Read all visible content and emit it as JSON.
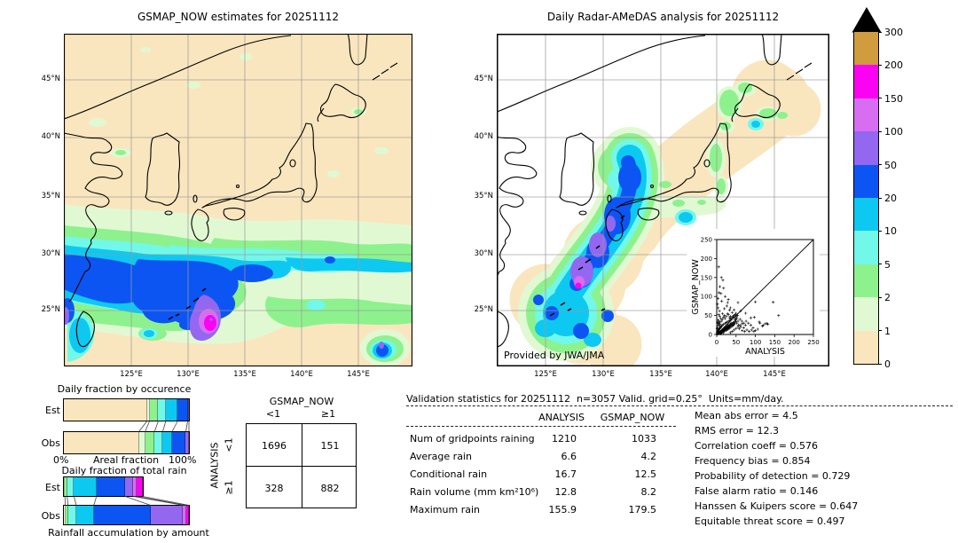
{
  "palette": {
    "tan": "#FAE6BE",
    "palegreen": "#E1F9D3",
    "green": "#8DF28D",
    "aqua": "#72F8E8",
    "cyan": "#0DC9F2",
    "blue": "#0C55F2",
    "purple": "#9467F0",
    "orchid": "#D96DF2",
    "magenta": "#FB02F2",
    "gold": "#D09C3E",
    "grid": "#9a9a9a",
    "coast": "#000000"
  },
  "left_map": {
    "title": "GSMAP_NOW estimates for 20251112",
    "lat_labels": [
      "45°N",
      "40°N",
      "35°N",
      "30°N",
      "25°N"
    ],
    "lon_labels": [
      "125°E",
      "130°E",
      "135°E",
      "140°E",
      "145°E"
    ]
  },
  "right_map": {
    "title": "Daily Radar-AMeDAS analysis for 20251112",
    "lat_labels": [
      "45°N",
      "40°N",
      "35°N",
      "30°N",
      "25°N"
    ],
    "lon_labels": [
      "125°E",
      "130°E",
      "135°E",
      "140°E",
      "145°E"
    ],
    "credit": "Provided by JWA/JMA"
  },
  "colorbar": {
    "labels_top_to_bottom": [
      "300",
      "200",
      "150",
      "100",
      "50",
      "20",
      "10",
      "5",
      "2",
      "1",
      "0"
    ],
    "colors_top_to_bottom": [
      "gold",
      "magenta",
      "orchid",
      "purple",
      "blue",
      "cyan",
      "aqua",
      "green",
      "palegreen",
      "tan"
    ],
    "overflow_marker": "black-triangle"
  },
  "chart_data": [
    {
      "type": "bar",
      "orientation": "horizontal-stacked",
      "title": "Daily fraction by occurence",
      "rows": [
        "Est",
        "Obs"
      ],
      "xlabel": "Areal fraction",
      "x_min_label": "0%",
      "x_max_label": "100%",
      "bins_mm_per_day": [
        "0-1",
        "1-2",
        "2-5",
        "5-10",
        "10-20",
        "20-50",
        "50-100",
        "100-150",
        "150-200",
        "200-300"
      ],
      "series": [
        {
          "name": "Est",
          "values": [
            66.5,
            2.0,
            7.0,
            6.0,
            9.5,
            8.0,
            1.0,
            0,
            0,
            0
          ]
        },
        {
          "name": "Obs",
          "values": [
            60.0,
            5.0,
            7.5,
            6.5,
            7.5,
            11.0,
            2.5,
            0,
            0,
            0
          ]
        }
      ]
    },
    {
      "type": "bar",
      "orientation": "horizontal-stacked",
      "title": "Daily fraction of total rain",
      "caption": "Rainfall accumulation by amount",
      "rows": [
        "Est",
        "Obs"
      ],
      "bins_mm_per_day": [
        "0-1",
        "1-2",
        "2-5",
        "5-10",
        "10-20",
        "20-50",
        "50-100",
        "100-150",
        "150-200",
        "200-300"
      ],
      "series": [
        {
          "name": "Est",
          "values": [
            0,
            0.8,
            1.8,
            5.5,
            18.0,
            23.0,
            6.5,
            2.8,
            4.6,
            0
          ]
        },
        {
          "name": "Obs",
          "values": [
            0,
            1.2,
            2.2,
            6.5,
            14.0,
            45.5,
            26.0,
            2.4,
            2.2,
            0
          ]
        }
      ]
    },
    {
      "type": "scatter",
      "xlabel": "ANALYSIS",
      "ylabel": "GSMAP_NOW",
      "xlim": [
        0,
        250
      ],
      "ylim": [
        0,
        250
      ],
      "ticks": [
        0,
        50,
        100,
        150,
        200,
        250
      ],
      "diagonal": true,
      "points": [
        [
          1,
          2
        ],
        [
          2,
          1
        ],
        [
          3,
          4
        ],
        [
          1,
          6
        ],
        [
          5,
          2
        ],
        [
          4,
          7
        ],
        [
          2,
          9
        ],
        [
          6,
          5
        ],
        [
          8,
          3
        ],
        [
          7,
          8
        ],
        [
          3,
          11
        ],
        [
          9,
          6
        ],
        [
          10,
          2
        ],
        [
          5,
          12
        ],
        [
          11,
          8
        ],
        [
          12,
          4
        ],
        [
          6,
          14
        ],
        [
          13,
          10
        ],
        [
          8,
          16
        ],
        [
          14,
          6
        ],
        [
          15,
          12
        ],
        [
          9,
          18
        ],
        [
          16,
          8
        ],
        [
          10,
          3
        ],
        [
          17,
          14
        ],
        [
          11,
          20
        ],
        [
          18,
          10
        ],
        [
          12,
          7
        ],
        [
          19,
          16
        ],
        [
          13,
          22
        ],
        [
          20,
          12
        ],
        [
          14,
          9
        ],
        [
          21,
          18
        ],
        [
          15,
          25
        ],
        [
          22,
          14
        ],
        [
          16,
          11
        ],
        [
          23,
          20
        ],
        [
          17,
          5
        ],
        [
          24,
          16
        ],
        [
          18,
          27
        ],
        [
          25,
          12
        ],
        [
          19,
          13
        ],
        [
          26,
          22
        ],
        [
          20,
          8
        ],
        [
          27,
          18
        ],
        [
          21,
          29
        ],
        [
          28,
          14
        ],
        [
          22,
          15
        ],
        [
          29,
          24
        ],
        [
          23,
          10
        ],
        [
          30,
          20
        ],
        [
          24,
          31
        ],
        [
          31,
          16
        ],
        [
          25,
          17
        ],
        [
          32,
          26
        ],
        [
          26,
          12
        ],
        [
          33,
          22
        ],
        [
          27,
          33
        ],
        [
          34,
          18
        ],
        [
          28,
          19
        ],
        [
          35,
          28
        ],
        [
          29,
          14
        ],
        [
          36,
          24
        ],
        [
          30,
          35
        ],
        [
          37,
          20
        ],
        [
          31,
          21
        ],
        [
          38,
          30
        ],
        [
          32,
          16
        ],
        [
          39,
          26
        ],
        [
          33,
          37
        ],
        [
          40,
          22
        ],
        [
          34,
          23
        ],
        [
          2,
          18
        ],
        [
          3,
          25
        ],
        [
          4,
          30
        ],
        [
          5,
          35
        ],
        [
          6,
          28
        ],
        [
          7,
          22
        ],
        [
          8,
          33
        ],
        [
          9,
          27
        ],
        [
          1,
          15
        ],
        [
          2,
          32
        ],
        [
          3,
          38
        ],
        [
          41,
          28
        ],
        [
          42,
          24
        ],
        [
          43,
          32
        ],
        [
          44,
          30
        ],
        [
          45,
          26
        ],
        [
          46,
          34
        ],
        [
          47,
          30
        ],
        [
          48,
          38
        ],
        [
          49,
          34
        ],
        [
          50,
          40
        ],
        [
          36,
          40
        ],
        [
          38,
          42
        ],
        [
          40,
          45
        ],
        [
          42,
          48
        ],
        [
          44,
          50
        ],
        [
          46,
          44
        ],
        [
          48,
          52
        ],
        [
          50,
          48
        ],
        [
          52,
          44
        ],
        [
          54,
          50
        ],
        [
          35,
          5
        ],
        [
          40,
          8
        ],
        [
          45,
          12
        ],
        [
          50,
          16
        ],
        [
          55,
          20
        ],
        [
          60,
          24
        ],
        [
          65,
          28
        ],
        [
          55,
          35
        ],
        [
          60,
          40
        ],
        [
          65,
          35
        ],
        [
          70,
          30
        ],
        [
          58,
          15
        ],
        [
          62,
          20
        ],
        [
          66,
          10
        ],
        [
          70,
          18
        ],
        [
          74,
          25
        ],
        [
          52,
          30
        ],
        [
          56,
          25
        ],
        [
          12,
          35
        ],
        [
          15,
          40
        ],
        [
          18,
          45
        ],
        [
          20,
          50
        ],
        [
          22,
          42
        ],
        [
          25,
          48
        ],
        [
          10,
          42
        ],
        [
          8,
          48
        ],
        [
          5,
          52
        ],
        [
          28,
          55
        ],
        [
          30,
          52
        ],
        [
          15,
          55
        ],
        [
          35,
          48
        ],
        [
          33,
          44
        ],
        [
          72,
          8
        ],
        [
          78,
          12
        ],
        [
          84,
          8
        ],
        [
          90,
          12
        ],
        [
          96,
          8
        ],
        [
          76,
          35
        ],
        [
          82,
          30
        ],
        [
          88,
          25
        ],
        [
          94,
          18
        ],
        [
          100,
          10
        ],
        [
          106,
          14
        ],
        [
          112,
          30
        ],
        [
          118,
          22
        ],
        [
          125,
          28
        ],
        [
          132,
          27
        ],
        [
          5,
          178
        ],
        [
          12,
          150
        ],
        [
          16,
          143
        ],
        [
          8,
          126
        ],
        [
          18,
          122
        ],
        [
          6,
          110
        ],
        [
          11,
          108
        ],
        [
          22,
          100
        ],
        [
          30,
          92
        ],
        [
          13,
          88
        ],
        [
          28,
          84
        ],
        [
          55,
          84
        ],
        [
          100,
          86
        ],
        [
          146,
          85
        ],
        [
          160,
          50
        ],
        [
          130,
          29
        ],
        [
          75,
          56
        ],
        [
          62,
          62
        ],
        [
          50,
          56
        ],
        [
          97,
          45
        ],
        [
          110,
          33
        ],
        [
          120,
          24
        ],
        [
          88,
          44
        ],
        [
          26,
          75
        ],
        [
          20,
          68
        ],
        [
          33,
          64
        ],
        [
          40,
          58
        ],
        [
          3,
          95
        ],
        [
          2,
          80
        ],
        [
          4,
          70
        ],
        [
          7,
          62
        ],
        [
          35,
          70
        ],
        [
          45,
          65
        ]
      ]
    }
  ],
  "contingency": {
    "col_title": "GSMAP_NOW",
    "row_title": "ANALYSIS",
    "col_labels": [
      "<1",
      "≥1"
    ],
    "row_labels": [
      "<1",
      "≥1"
    ],
    "values": [
      [
        "1696",
        "151"
      ],
      [
        "328",
        "882"
      ]
    ]
  },
  "validation": {
    "title": "Validation statistics for 20251112  n=3057 Valid. grid=0.25°  Units=mm/day.",
    "col_headers": [
      "ANALYSIS",
      "GSMAP_NOW"
    ],
    "rows": [
      {
        "label": "Num of gridpoints raining",
        "analysis": "1210",
        "gsmap": "1033"
      },
      {
        "label": "Average rain",
        "analysis": "6.6",
        "gsmap": "4.2"
      },
      {
        "label": "Conditional rain",
        "analysis": "16.7",
        "gsmap": "12.5"
      },
      {
        "label": "Rain volume (mm km²10⁶)",
        "analysis": "12.8",
        "gsmap": "8.2"
      },
      {
        "label": "Maximum rain",
        "analysis": "155.9",
        "gsmap": "179.5"
      }
    ],
    "scores": [
      {
        "label": "Mean abs error",
        "value": "4.5"
      },
      {
        "label": "RMS error",
        "value": "12.3"
      },
      {
        "label": "Correlation coeff",
        "value": "0.576"
      },
      {
        "label": "Frequency bias",
        "value": "0.854"
      },
      {
        "label": "Probability of detection",
        "value": "0.729"
      },
      {
        "label": "False alarm ratio",
        "value": "0.146"
      },
      {
        "label": "Hanssen & Kuipers score",
        "value": "0.647"
      },
      {
        "label": "Equitable threat score",
        "value": "0.497"
      }
    ]
  }
}
